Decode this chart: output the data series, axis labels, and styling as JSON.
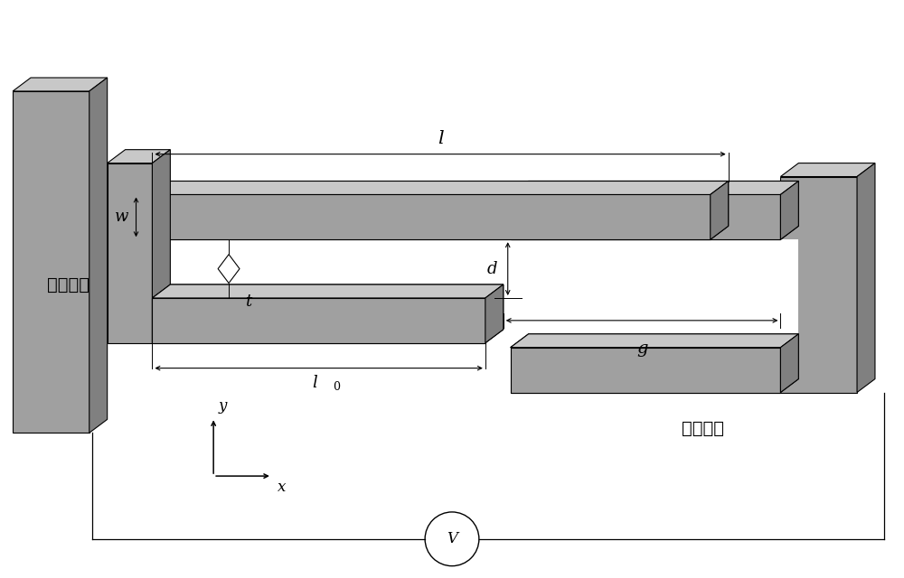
{
  "fig_width": 10.0,
  "fig_height": 6.4,
  "bg_color": "#ffffff",
  "gray_face": "#a0a0a0",
  "gray_dark": "#808080",
  "gray_light": "#c8c8c8",
  "gray_side": "#909090",
  "line_color": "#000000",
  "label_movable": "可动梳齿",
  "label_fixed": "固定梳齿",
  "label_l": "l",
  "label_w": "w",
  "label_t": "t",
  "label_d": "d",
  "label_g": "g",
  "label_l0_main": "l",
  "label_l0_sub": "0",
  "label_y": "y",
  "label_x": "x",
  "label_V": "V"
}
